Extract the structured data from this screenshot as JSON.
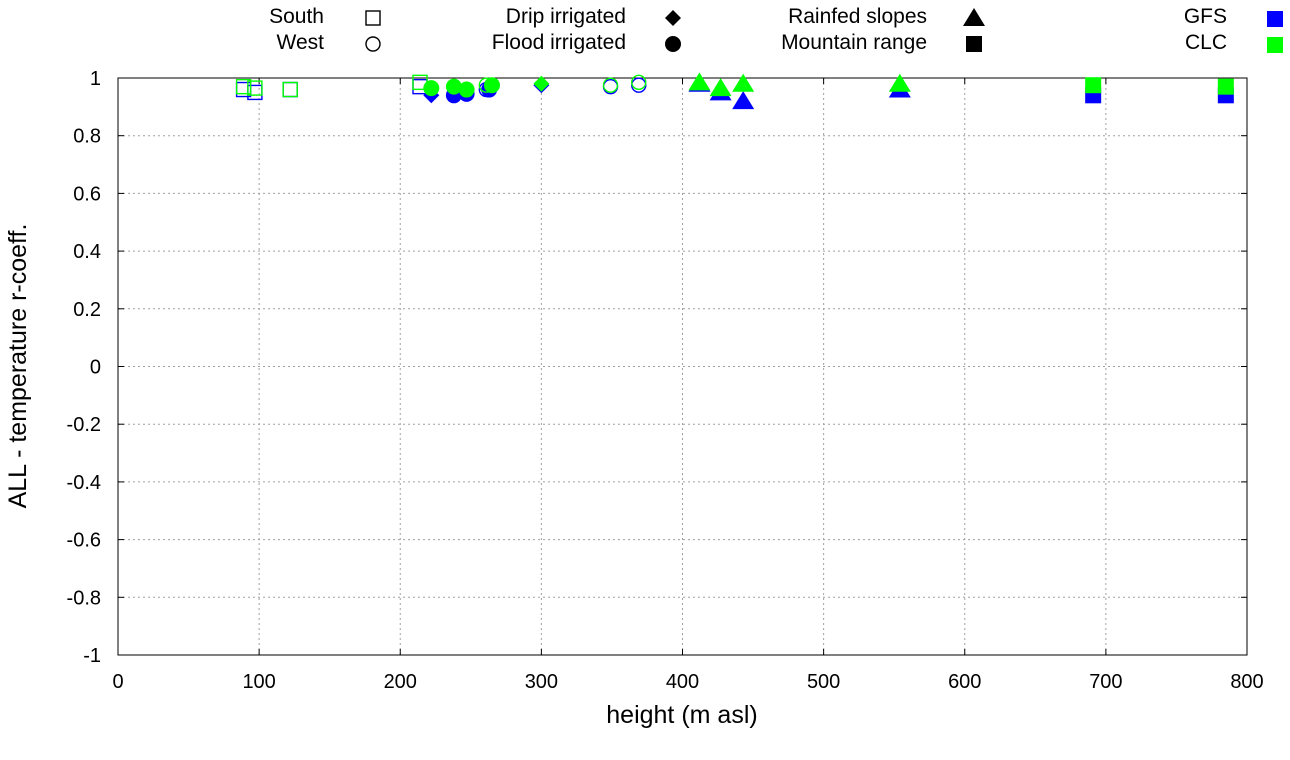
{
  "chart_data": {
    "type": "scatter",
    "xlabel": "height (m asl)",
    "ylabel": "ALL - temperature r-coeff.",
    "xlim": [
      0,
      800
    ],
    "ylim": [
      -1,
      1
    ],
    "x_ticks": [
      "0",
      "100",
      "200",
      "300",
      "400",
      "500",
      "600",
      "700",
      "800"
    ],
    "y_ticks": [
      "-1",
      "-0.8",
      "-0.6",
      "-0.4",
      "-0.2",
      "0",
      "0.2",
      "0.4",
      "0.6",
      "0.8",
      "1"
    ],
    "grid": true,
    "legend_placement": "top, outside plot",
    "legend": {
      "region": [
        {
          "key": "south",
          "label": "South",
          "marker": "square-open"
        },
        {
          "key": "west",
          "label": "West",
          "marker": "circle-open"
        }
      ],
      "class": [
        {
          "key": "drip",
          "label": "Drip irrigated",
          "marker": "diamond"
        },
        {
          "key": "flood",
          "label": "Flood irrigated",
          "marker": "circle"
        },
        {
          "key": "rainfed",
          "label": "Rainfed slopes",
          "marker": "triangle"
        },
        {
          "key": "mountain",
          "label": "Mountain range",
          "marker": "square"
        }
      ],
      "source": [
        {
          "key": "gfs",
          "label": "GFS",
          "color": "#0000ff"
        },
        {
          "key": "clc",
          "label": "CLC",
          "color": "#00ff00"
        }
      ]
    },
    "colors": {
      "gfs": "#0000ff",
      "clc": "#00ff00",
      "legend_marker": "#000000"
    },
    "series": [
      {
        "source": "gfs",
        "points": [
          {
            "x": 89,
            "y": 0.96,
            "marker": "square-open"
          },
          {
            "x": 97,
            "y": 0.95,
            "marker": "square-open"
          },
          {
            "x": 122,
            "y": 0.96,
            "marker": "square-open"
          },
          {
            "x": 214,
            "y": 0.97,
            "marker": "square-open"
          },
          {
            "x": 222,
            "y": 0.94,
            "marker": "diamond"
          },
          {
            "x": 238,
            "y": 0.94,
            "marker": "circle"
          },
          {
            "x": 247,
            "y": 0.945,
            "marker": "circle"
          },
          {
            "x": 261,
            "y": 0.96,
            "marker": "circle-open"
          },
          {
            "x": 263,
            "y": 0.96,
            "marker": "circle"
          },
          {
            "x": 300,
            "y": 0.975,
            "marker": "diamond"
          },
          {
            "x": 349,
            "y": 0.97,
            "marker": "circle-open"
          },
          {
            "x": 369,
            "y": 0.975,
            "marker": "circle-open"
          },
          {
            "x": 412,
            "y": 0.98,
            "marker": "triangle"
          },
          {
            "x": 427,
            "y": 0.95,
            "marker": "triangle"
          },
          {
            "x": 443,
            "y": 0.92,
            "marker": "triangle"
          },
          {
            "x": 554,
            "y": 0.96,
            "marker": "triangle"
          },
          {
            "x": 691,
            "y": 0.94,
            "marker": "square"
          },
          {
            "x": 785,
            "y": 0.94,
            "marker": "square"
          }
        ]
      },
      {
        "source": "clc",
        "points": [
          {
            "x": 89,
            "y": 0.97,
            "marker": "square-open"
          },
          {
            "x": 97,
            "y": 0.965,
            "marker": "square-open"
          },
          {
            "x": 122,
            "y": 0.96,
            "marker": "square-open"
          },
          {
            "x": 214,
            "y": 0.985,
            "marker": "square-open"
          },
          {
            "x": 222,
            "y": 0.965,
            "marker": "circle"
          },
          {
            "x": 238,
            "y": 0.97,
            "marker": "circle"
          },
          {
            "x": 247,
            "y": 0.96,
            "marker": "circle"
          },
          {
            "x": 261,
            "y": 0.975,
            "marker": "circle-open"
          },
          {
            "x": 265,
            "y": 0.975,
            "marker": "circle"
          },
          {
            "x": 300,
            "y": 0.98,
            "marker": "diamond"
          },
          {
            "x": 349,
            "y": 0.975,
            "marker": "circle-open"
          },
          {
            "x": 369,
            "y": 0.985,
            "marker": "circle-open"
          },
          {
            "x": 412,
            "y": 0.985,
            "marker": "triangle"
          },
          {
            "x": 427,
            "y": 0.965,
            "marker": "triangle"
          },
          {
            "x": 443,
            "y": 0.98,
            "marker": "triangle"
          },
          {
            "x": 554,
            "y": 0.98,
            "marker": "triangle"
          },
          {
            "x": 691,
            "y": 0.975,
            "marker": "square"
          },
          {
            "x": 785,
            "y": 0.97,
            "marker": "square"
          }
        ]
      }
    ]
  }
}
